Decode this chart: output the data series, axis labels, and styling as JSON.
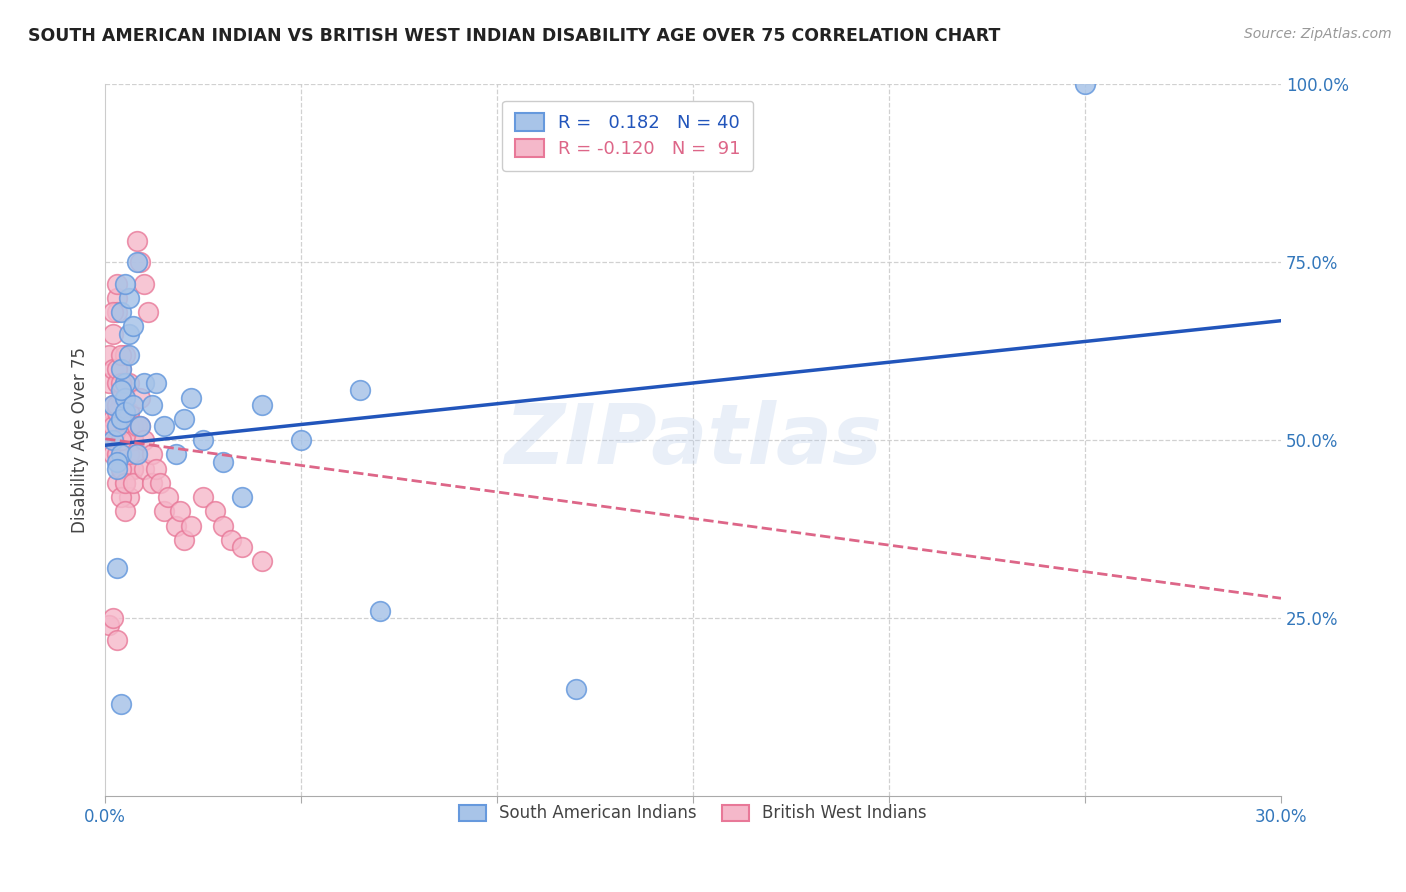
{
  "title": "SOUTH AMERICAN INDIAN VS BRITISH WEST INDIAN DISABILITY AGE OVER 75 CORRELATION CHART",
  "source": "Source: ZipAtlas.com",
  "ylabel": "Disability Age Over 75",
  "xlim": [
    0,
    0.3
  ],
  "ylim": [
    0,
    1.0
  ],
  "xticks": [
    0.0,
    0.05,
    0.1,
    0.15,
    0.2,
    0.25,
    0.3
  ],
  "xticklabels": [
    "0.0%",
    "",
    "",
    "",
    "",
    "",
    "30.0%"
  ],
  "yticks": [
    0.0,
    0.25,
    0.5,
    0.75,
    1.0
  ],
  "yticklabels_right": [
    "",
    "25.0%",
    "50.0%",
    "75.0%",
    "100.0%"
  ],
  "blue_r": "0.182",
  "blue_n": "40",
  "pink_r": "-0.120",
  "pink_n": "91",
  "blue_color": "#A8C4E8",
  "pink_color": "#F5B8CA",
  "blue_edge": "#6699DD",
  "pink_edge": "#E87898",
  "blue_line_color": "#2255BB",
  "pink_line_color": "#DD6688",
  "watermark": "ZIPatlas",
  "blue_scatter_x": [
    0.002,
    0.003,
    0.004,
    0.002,
    0.003,
    0.004,
    0.005,
    0.003,
    0.004,
    0.005,
    0.006,
    0.004,
    0.005,
    0.006,
    0.004,
    0.005,
    0.007,
    0.006,
    0.008,
    0.007,
    0.009,
    0.01,
    0.008,
    0.012,
    0.015,
    0.013,
    0.018,
    0.02,
    0.022,
    0.025,
    0.03,
    0.035,
    0.04,
    0.05,
    0.065,
    0.07,
    0.12,
    0.25,
    0.003,
    0.004
  ],
  "blue_scatter_y": [
    0.5,
    0.52,
    0.48,
    0.55,
    0.47,
    0.53,
    0.58,
    0.46,
    0.6,
    0.56,
    0.65,
    0.68,
    0.54,
    0.7,
    0.57,
    0.72,
    0.66,
    0.62,
    0.75,
    0.55,
    0.52,
    0.58,
    0.48,
    0.55,
    0.52,
    0.58,
    0.48,
    0.53,
    0.56,
    0.5,
    0.47,
    0.42,
    0.55,
    0.5,
    0.57,
    0.26,
    0.15,
    1.0,
    0.32,
    0.13
  ],
  "pink_scatter_x": [
    0.001,
    0.001,
    0.002,
    0.001,
    0.002,
    0.002,
    0.003,
    0.002,
    0.002,
    0.003,
    0.003,
    0.003,
    0.004,
    0.003,
    0.004,
    0.004,
    0.005,
    0.004,
    0.004,
    0.005,
    0.005,
    0.005,
    0.006,
    0.005,
    0.006,
    0.006,
    0.007,
    0.006,
    0.007,
    0.007,
    0.002,
    0.002,
    0.003,
    0.003,
    0.004,
    0.004,
    0.005,
    0.005,
    0.006,
    0.006,
    0.003,
    0.003,
    0.004,
    0.004,
    0.005,
    0.005,
    0.006,
    0.006,
    0.007,
    0.007,
    0.003,
    0.003,
    0.004,
    0.004,
    0.005,
    0.005,
    0.006,
    0.006,
    0.007,
    0.007,
    0.008,
    0.008,
    0.009,
    0.009,
    0.01,
    0.01,
    0.008,
    0.009,
    0.01,
    0.011,
    0.012,
    0.012,
    0.013,
    0.014,
    0.015,
    0.016,
    0.018,
    0.019,
    0.02,
    0.022,
    0.025,
    0.028,
    0.03,
    0.032,
    0.035,
    0.04,
    0.001,
    0.002,
    0.003,
    0.004,
    0.002
  ],
  "pink_scatter_y": [
    0.52,
    0.58,
    0.55,
    0.62,
    0.6,
    0.65,
    0.48,
    0.5,
    0.53,
    0.7,
    0.72,
    0.68,
    0.54,
    0.58,
    0.56,
    0.6,
    0.52,
    0.5,
    0.55,
    0.58,
    0.48,
    0.62,
    0.52,
    0.56,
    0.5,
    0.54,
    0.48,
    0.58,
    0.52,
    0.46,
    0.48,
    0.52,
    0.5,
    0.54,
    0.46,
    0.5,
    0.44,
    0.48,
    0.42,
    0.46,
    0.6,
    0.55,
    0.62,
    0.58,
    0.56,
    0.52,
    0.48,
    0.54,
    0.5,
    0.46,
    0.44,
    0.48,
    0.42,
    0.46,
    0.4,
    0.44,
    0.52,
    0.48,
    0.44,
    0.5,
    0.52,
    0.48,
    0.56,
    0.52,
    0.5,
    0.46,
    0.78,
    0.75,
    0.72,
    0.68,
    0.44,
    0.48,
    0.46,
    0.44,
    0.4,
    0.42,
    0.38,
    0.4,
    0.36,
    0.38,
    0.42,
    0.4,
    0.38,
    0.36,
    0.35,
    0.33,
    0.24,
    0.25,
    0.22,
    0.5,
    0.68
  ]
}
